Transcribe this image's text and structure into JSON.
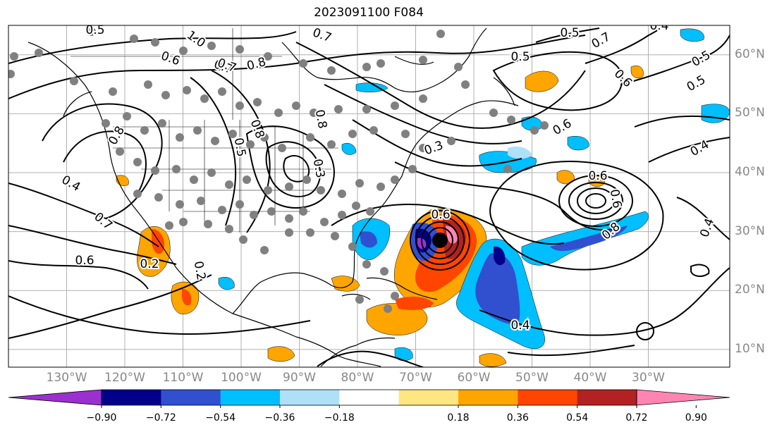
{
  "title": "2023091100 F084",
  "map": {
    "projection": "cylindrical",
    "extent": {
      "lon_min": -140,
      "lon_max": -16,
      "lat_min": 7,
      "lat_max": 65
    },
    "lat_labels": [
      "10°N",
      "20°N",
      "30°N",
      "40°N",
      "50°N",
      "60°N"
    ],
    "lat_values": [
      10,
      20,
      30,
      40,
      50,
      60
    ],
    "lon_labels": [
      "130°W",
      "120°W",
      "110°W",
      "100°W",
      "90°W",
      "80°W",
      "70°W",
      "60°W",
      "50°W",
      "40°W",
      "30°W"
    ],
    "lon_values": [
      -130,
      -120,
      -110,
      -100,
      -90,
      -80,
      -70,
      -60,
      -50,
      -40,
      -30
    ],
    "contour_labels": [
      "0.5",
      "1.0",
      "0.7",
      "0.6",
      "0.7",
      "0.8",
      "0.8",
      "0.8",
      "0.7",
      "0.5",
      "0.5",
      "0.7",
      "0.6",
      "0.5",
      "0.5",
      "0.4",
      "0.6",
      "0.6",
      "0.6",
      "0.8",
      "0.3",
      "0.6",
      "0.5",
      "0.4",
      "0.7",
      "0.6",
      "0.4",
      "0.4",
      "0.2",
      "0.8",
      "0.3",
      "0.2",
      "0.4"
    ],
    "colors": {
      "coast": "#000000",
      "contour": "#000000",
      "grid": "#b0b0b0",
      "station": "#808080"
    }
  },
  "colorbar": {
    "ticks": [
      "−0.90",
      "−0.72",
      "−0.54",
      "−0.36",
      "−0.18",
      "0.18",
      "0.36",
      "0.54",
      "0.72",
      "0.90"
    ],
    "colors": [
      "#9b30d0",
      "#00008b",
      "#3050d0",
      "#00bfff",
      "#aee0f8",
      "#ffffff",
      "#ffe680",
      "#ffa500",
      "#ff4500",
      "#b22222",
      "#ff85b0"
    ]
  }
}
